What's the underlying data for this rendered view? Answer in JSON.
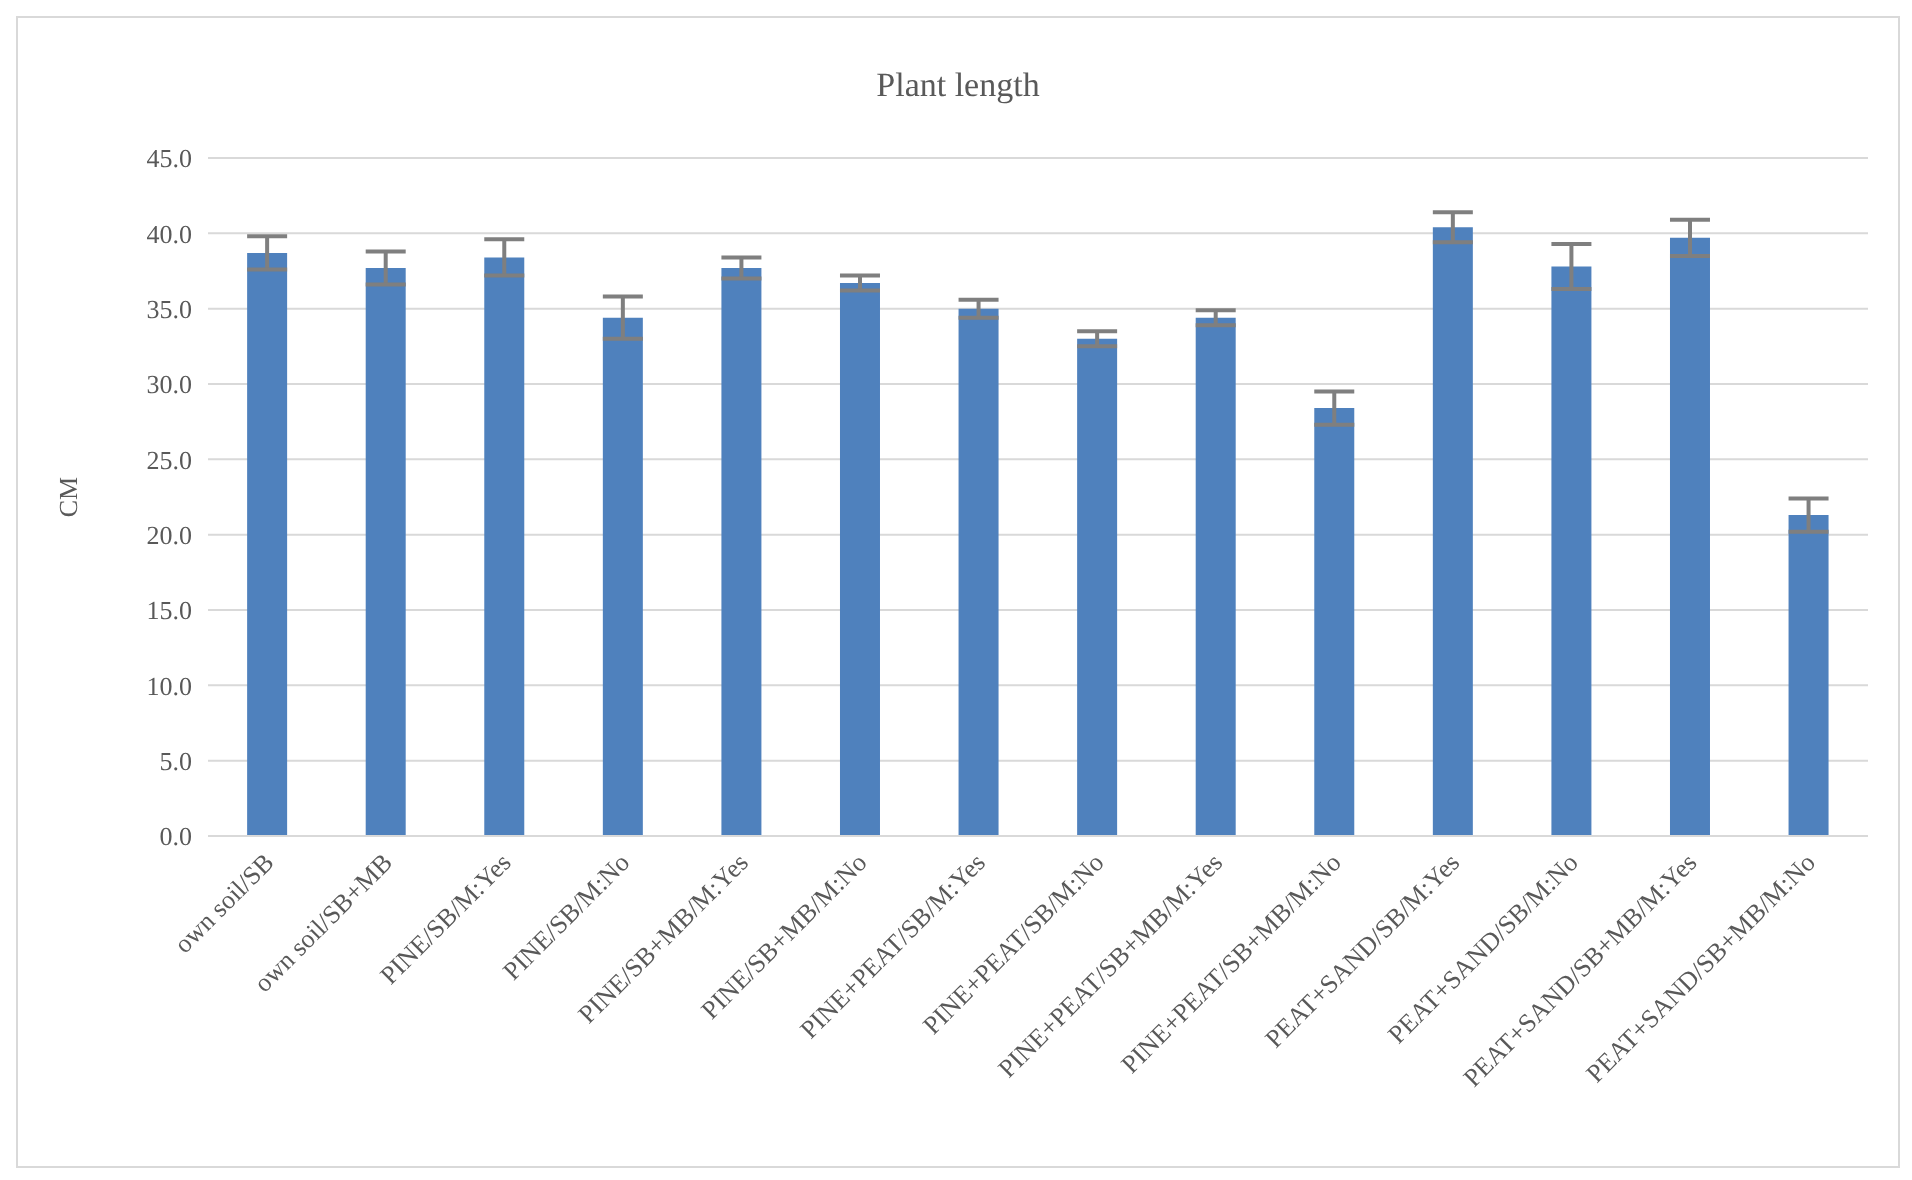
{
  "chart_data": {
    "type": "bar",
    "title": "Plant length",
    "ylabel": "CM",
    "categories": [
      "own soil/SB",
      "own soil/SB+MB",
      "PINE/SB/M:Yes",
      "PINE/SB/M:No",
      "PINE/SB+MB/M:Yes",
      "PINE/SB+MB/M:No",
      "PINE+PEAT/SB/M:Yes",
      "PINE+PEAT/SB/M:No",
      "PINE+PEAT/SB+MB/M:Yes",
      "PINE+PEAT/SB+MB/M:No",
      "PEAT+SAND/SB/M:Yes",
      "PEAT+SAND/SB/M:No",
      "PEAT+SAND/SB+MB/M:Yes",
      "PEAT+SAND/SB+MB/M:No"
    ],
    "values": [
      38.7,
      37.7,
      38.4,
      34.4,
      37.7,
      36.7,
      35.0,
      33.0,
      34.4,
      28.4,
      40.4,
      37.8,
      39.7,
      21.3
    ],
    "errors": [
      1.1,
      1.1,
      1.2,
      1.4,
      0.7,
      0.5,
      0.6,
      0.5,
      0.5,
      1.1,
      1.0,
      1.5,
      1.2,
      1.1
    ],
    "color": "#4f81bd",
    "ylim": [
      0,
      45
    ],
    "yticks": [
      {
        "value": 0,
        "label": "0.0"
      },
      {
        "value": 5,
        "label": "5.0"
      },
      {
        "value": 10,
        "label": "10.0"
      },
      {
        "value": 15,
        "label": "15.0"
      },
      {
        "value": 20,
        "label": "20.0"
      },
      {
        "value": 25,
        "label": "25.0"
      },
      {
        "value": 30,
        "label": "30.0"
      },
      {
        "value": 35,
        "label": "35.0"
      },
      {
        "value": 40,
        "label": "40.0"
      },
      {
        "value": 45,
        "label": "45.0"
      }
    ],
    "grid": "y",
    "legend": false
  }
}
